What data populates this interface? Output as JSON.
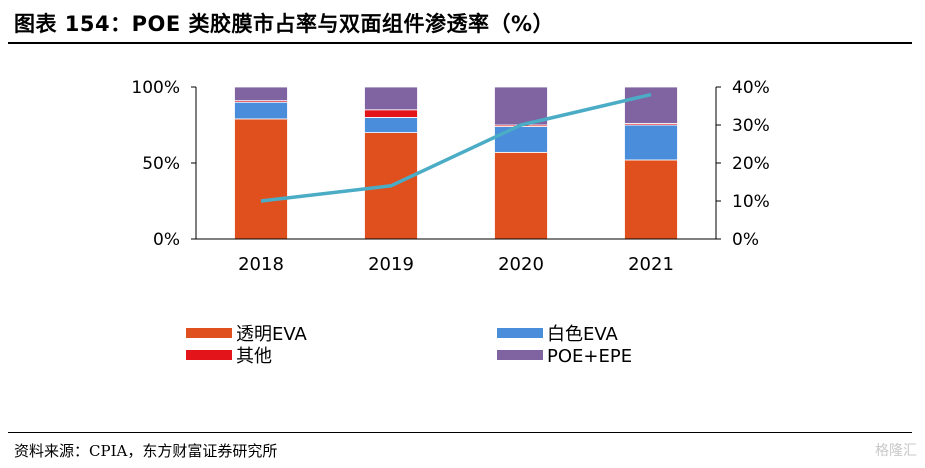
{
  "header": {
    "title": "图表 154：POE 类胶膜市占率与双面组件渗透率（%）"
  },
  "footer": {
    "source": "资料来源：CPIA，东方财富证券研究所",
    "watermark": "格隆汇"
  },
  "chart_data": {
    "type": "bar",
    "stacked": true,
    "categories": [
      "2018",
      "2019",
      "2020",
      "2021"
    ],
    "series": [
      {
        "name": "透明EVA",
        "values": [
          79,
          70,
          57,
          52
        ],
        "color": "#E0501E"
      },
      {
        "name": "白色EVA",
        "values": [
          11,
          10,
          17,
          23
        ],
        "color": "#4A8DDB"
      },
      {
        "name": "其他",
        "values": [
          1,
          5,
          1,
          1
        ],
        "color": "#E3151A"
      },
      {
        "name": "POE+EPE",
        "values": [
          9,
          15,
          25,
          24
        ],
        "color": "#8064A2"
      }
    ],
    "line": {
      "values": [
        10,
        14,
        30,
        38
      ],
      "color": "#4BACC6",
      "axis": "right"
    },
    "ylim_left": [
      0,
      100
    ],
    "yticks_left": [
      "0%",
      "50%",
      "100%"
    ],
    "ylim_right": [
      0,
      40
    ],
    "yticks_right": [
      "0%",
      "10%",
      "20%",
      "30%",
      "40%"
    ],
    "legend_placement": "bottom",
    "grid": false
  }
}
